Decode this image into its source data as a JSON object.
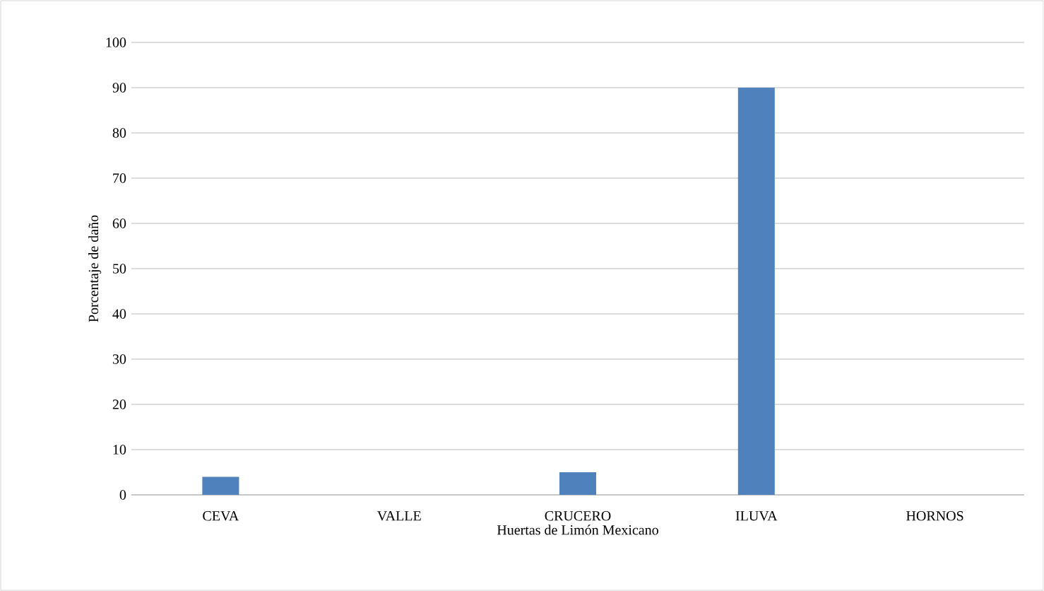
{
  "chart_data": {
    "type": "bar",
    "xlabel": "Huertas de Limón Mexicano",
    "ylabel": "Porcentaje de daño",
    "categories": [
      "CEVA",
      "VALLE",
      "CRUCERO",
      "ILUVA",
      "HORNOS"
    ],
    "values": [
      4,
      0,
      5,
      90,
      0
    ],
    "color": "#4f81bd",
    "ylim": [
      0,
      100
    ],
    "yticks": [
      0,
      10,
      20,
      30,
      40,
      50,
      60,
      70,
      80,
      90,
      100
    ],
    "grid": "y"
  }
}
